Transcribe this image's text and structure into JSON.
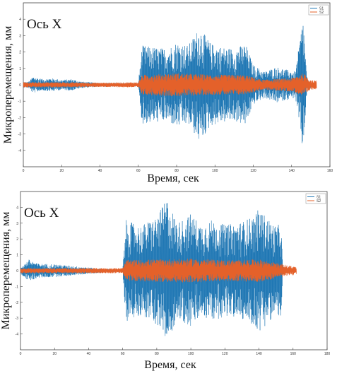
{
  "colors": {
    "S1": "#1f77b4",
    "S2": "#e4612a"
  },
  "chart_data": [
    {
      "type": "line",
      "annotation": "Ось X",
      "xlabel": "Время, сек",
      "ylabel": "Микроперемещения, мм",
      "xlim": [
        0,
        160
      ],
      "ylim": [
        -5,
        5
      ],
      "x_ticks": [
        0,
        20,
        40,
        60,
        80,
        100,
        120,
        140,
        160
      ],
      "y_ticks": [
        -4,
        -3,
        -2,
        -1,
        0,
        1,
        2,
        3,
        4
      ],
      "legend_position": "top-right",
      "series": [
        {
          "name": "S1",
          "color": "#1f77b4",
          "envelope": [
            {
              "x": 0,
              "amp": 0.15
            },
            {
              "x": 3,
              "amp": 0.2
            },
            {
              "x": 5,
              "amp": 0.5
            },
            {
              "x": 10,
              "amp": 0.35
            },
            {
              "x": 15,
              "amp": 0.4
            },
            {
              "x": 20,
              "amp": 0.3
            },
            {
              "x": 25,
              "amp": 0.35
            },
            {
              "x": 30,
              "amp": 0.2
            },
            {
              "x": 35,
              "amp": 0.15
            },
            {
              "x": 40,
              "amp": 0.12
            },
            {
              "x": 50,
              "amp": 0.1
            },
            {
              "x": 60,
              "amp": 0.1
            },
            {
              "x": 62,
              "amp": 2.4
            },
            {
              "x": 68,
              "amp": 2.3
            },
            {
              "x": 75,
              "amp": 2.2
            },
            {
              "x": 80,
              "amp": 2.6
            },
            {
              "x": 86,
              "amp": 2.4
            },
            {
              "x": 92,
              "amp": 3.5
            },
            {
              "x": 98,
              "amp": 2.5
            },
            {
              "x": 104,
              "amp": 2.3
            },
            {
              "x": 110,
              "amp": 2.2
            },
            {
              "x": 116,
              "amp": 2.5
            },
            {
              "x": 120,
              "amp": 1.2
            },
            {
              "x": 126,
              "amp": 0.8
            },
            {
              "x": 132,
              "amp": 1.1
            },
            {
              "x": 138,
              "amp": 0.9
            },
            {
              "x": 142,
              "amp": 0.8
            },
            {
              "x": 146,
              "amp": 4.2
            },
            {
              "x": 148,
              "amp": 0.3
            },
            {
              "x": 152,
              "amp": 0.1
            }
          ]
        },
        {
          "name": "S2",
          "color": "#e4612a",
          "envelope": [
            {
              "x": 0,
              "amp": 0.15
            },
            {
              "x": 20,
              "amp": 0.15
            },
            {
              "x": 40,
              "amp": 0.12
            },
            {
              "x": 60,
              "amp": 0.15
            },
            {
              "x": 62,
              "amp": 0.6
            },
            {
              "x": 80,
              "amp": 0.7
            },
            {
              "x": 100,
              "amp": 0.6
            },
            {
              "x": 115,
              "amp": 0.6
            },
            {
              "x": 125,
              "amp": 0.3
            },
            {
              "x": 140,
              "amp": 0.4
            },
            {
              "x": 146,
              "amp": 0.7
            },
            {
              "x": 150,
              "amp": 0.3
            },
            {
              "x": 153,
              "amp": 0.25
            }
          ]
        }
      ]
    },
    {
      "type": "line",
      "annotation": "Ось X",
      "xlabel": "Время, сек",
      "ylabel": "Микроперемещения, мм",
      "xlim": [
        0,
        180
      ],
      "ylim": [
        -5,
        5
      ],
      "x_ticks": [
        0,
        20,
        40,
        60,
        80,
        100,
        120,
        140,
        160,
        180
      ],
      "y_ticks": [
        -4,
        -3,
        -2,
        -1,
        0,
        1,
        2,
        3,
        4
      ],
      "legend_position": "top-right",
      "series": [
        {
          "name": "S1",
          "color": "#1f77b4",
          "envelope": [
            {
              "x": 0,
              "amp": 0.2
            },
            {
              "x": 5,
              "amp": 0.7
            },
            {
              "x": 10,
              "amp": 0.45
            },
            {
              "x": 20,
              "amp": 0.4
            },
            {
              "x": 30,
              "amp": 0.3
            },
            {
              "x": 40,
              "amp": 0.2
            },
            {
              "x": 50,
              "amp": 0.1
            },
            {
              "x": 60,
              "amp": 0.1
            },
            {
              "x": 62,
              "amp": 3.2
            },
            {
              "x": 70,
              "amp": 2.8
            },
            {
              "x": 80,
              "amp": 3.4
            },
            {
              "x": 86,
              "amp": 4.6
            },
            {
              "x": 92,
              "amp": 3.0
            },
            {
              "x": 100,
              "amp": 3.6
            },
            {
              "x": 106,
              "amp": 2.9
            },
            {
              "x": 112,
              "amp": 3.2
            },
            {
              "x": 120,
              "amp": 2.9
            },
            {
              "x": 128,
              "amp": 3.0
            },
            {
              "x": 136,
              "amp": 3.4
            },
            {
              "x": 140,
              "amp": 3.9
            },
            {
              "x": 146,
              "amp": 3.2
            },
            {
              "x": 150,
              "amp": 2.8
            },
            {
              "x": 153,
              "amp": 3.0
            },
            {
              "x": 154,
              "amp": 0.1
            }
          ]
        },
        {
          "name": "S2",
          "color": "#e4612a",
          "envelope": [
            {
              "x": 0,
              "amp": 0.15
            },
            {
              "x": 30,
              "amp": 0.15
            },
            {
              "x": 60,
              "amp": 0.15
            },
            {
              "x": 62,
              "amp": 0.65
            },
            {
              "x": 80,
              "amp": 0.7
            },
            {
              "x": 100,
              "amp": 0.75
            },
            {
              "x": 120,
              "amp": 0.65
            },
            {
              "x": 140,
              "amp": 0.7
            },
            {
              "x": 158,
              "amp": 0.3
            },
            {
              "x": 162,
              "amp": 0.25
            }
          ]
        }
      ]
    }
  ]
}
